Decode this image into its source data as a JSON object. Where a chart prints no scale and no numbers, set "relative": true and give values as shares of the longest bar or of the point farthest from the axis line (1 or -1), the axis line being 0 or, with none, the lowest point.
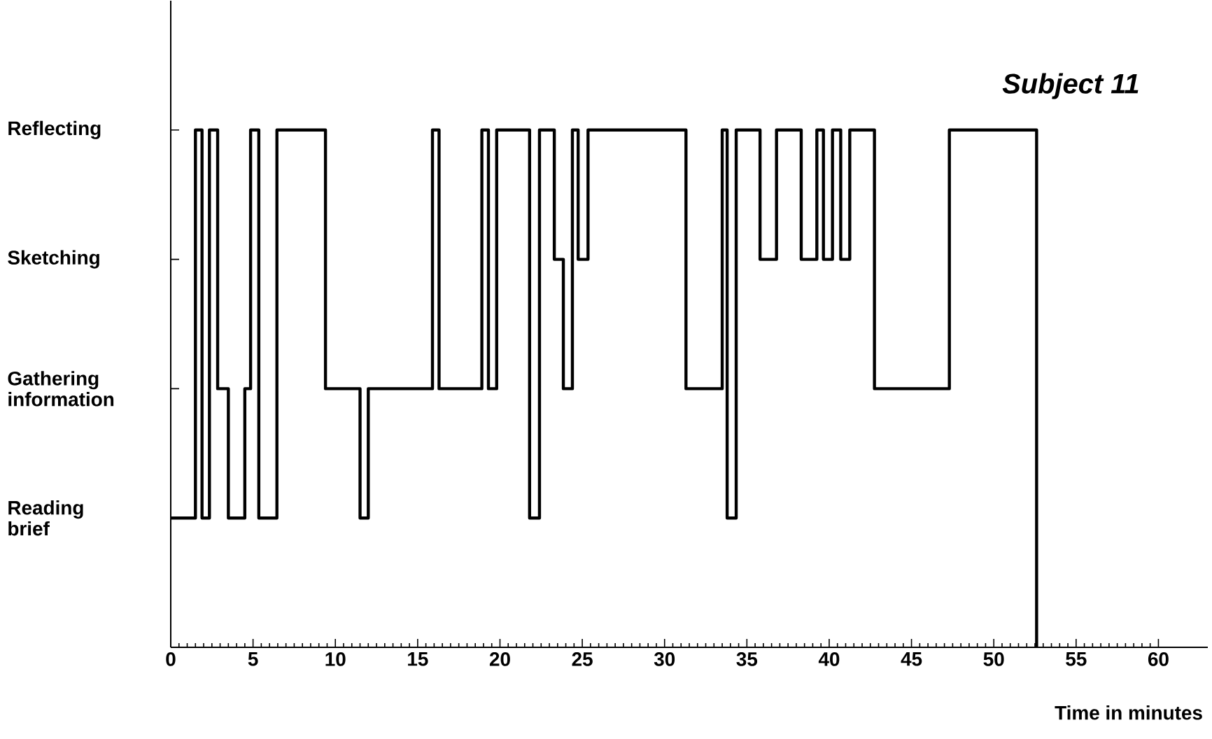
{
  "chart_data": {
    "type": "step",
    "title": "Subject 11",
    "xlabel": "Time in minutes",
    "relative": true,
    "xlim": [
      0,
      63
    ],
    "xticks": [
      0,
      5,
      10,
      15,
      20,
      25,
      30,
      35,
      40,
      45,
      50,
      55,
      60
    ],
    "annotations": [
      "Reading brief",
      "Gathering information",
      "Sketching",
      "Reflecting"
    ],
    "series": [
      {
        "color": "#000000",
        "x": [
          0,
          1.5,
          1.9,
          2.35,
          2.85,
          3.5,
          4.5,
          4.85,
          5.35,
          6.45,
          9.4,
          11.5,
          12.0,
          15.9,
          16.3,
          18.9,
          19.3,
          19.8,
          21.8,
          22.4,
          23.3,
          23.85,
          24.4,
          24.75,
          25.35,
          31.3,
          33.5,
          33.8,
          34.35,
          35.8,
          36.8,
          38.3,
          39.25,
          39.65,
          40.2,
          40.7,
          41.25,
          42.75,
          47.3,
          52.6
        ],
        "values": [
          0.25,
          1,
          0.25,
          1,
          0.5,
          0.25,
          0.5,
          1,
          0.25,
          1,
          0.5,
          0.25,
          0.5,
          1,
          0.5,
          1,
          0.5,
          1,
          0.25,
          1,
          0.75,
          0.5,
          1,
          0.75,
          1,
          0.5,
          1,
          0.25,
          1,
          0.75,
          1,
          0.75,
          1,
          0.75,
          1,
          0.75,
          1,
          0.5,
          1,
          0
        ]
      }
    ]
  }
}
